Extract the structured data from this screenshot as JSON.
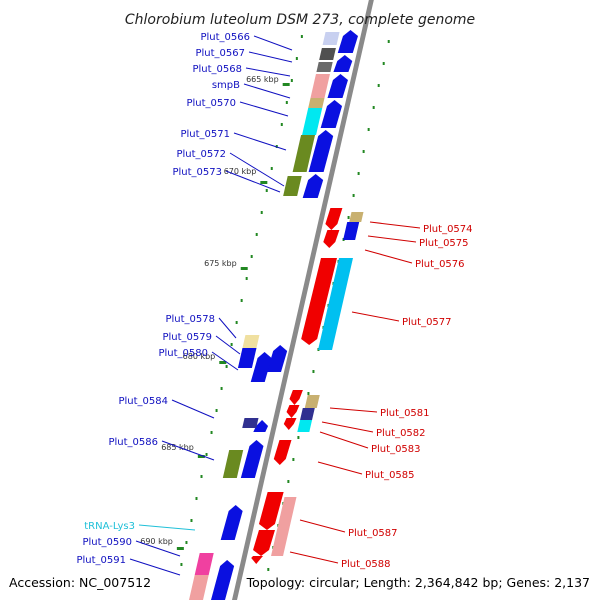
{
  "title": "Chlorobium luteolum DSM 273, complete genome",
  "accession": "Accession: NC_007512",
  "topology": "Topology: circular; Length: 2,364,842 bp; Genes: 2,137",
  "colors": {
    "label_forward": "#1010c0",
    "label_reverse": "#d00000",
    "label_trna": "#20c0d8",
    "forward_cds": "#0a10e0",
    "reverse_cds": "#f00000",
    "backbone": "#8a8a8a",
    "tick": "#228822"
  },
  "ticks": [
    {
      "text": "665 kbp"
    },
    {
      "text": "670 kbp"
    },
    {
      "text": "675 kbp"
    },
    {
      "text": "680 kbp"
    },
    {
      "text": "685 kbp"
    },
    {
      "text": "690 kbp"
    }
  ],
  "forward_labels": [
    {
      "text": "Plut_0566"
    },
    {
      "text": "Plut_0567"
    },
    {
      "text": "Plut_0568"
    },
    {
      "text": "smpB"
    },
    {
      "text": "Plut_0570"
    },
    {
      "text": "Plut_0571"
    },
    {
      "text": "Plut_0572"
    },
    {
      "text": "Plut_0573"
    },
    {
      "text": "Plut_0578"
    },
    {
      "text": "Plut_0579"
    },
    {
      "text": "Plut_0580"
    },
    {
      "text": "Plut_0584"
    },
    {
      "text": "Plut_0586"
    },
    {
      "text": "tRNA-Lys3"
    },
    {
      "text": "Plut_0590"
    },
    {
      "text": "Plut_0591"
    }
  ],
  "reverse_labels": [
    {
      "text": "Plut_0574"
    },
    {
      "text": "Plut_0575"
    },
    {
      "text": "Plut_0576"
    },
    {
      "text": "Plut_0577"
    },
    {
      "text": "Plut_0581"
    },
    {
      "text": "Plut_0582"
    },
    {
      "text": "Plut_0583"
    },
    {
      "text": "Plut_0585"
    },
    {
      "text": "Plut_0587"
    },
    {
      "text": "Plut_0588"
    }
  ]
}
